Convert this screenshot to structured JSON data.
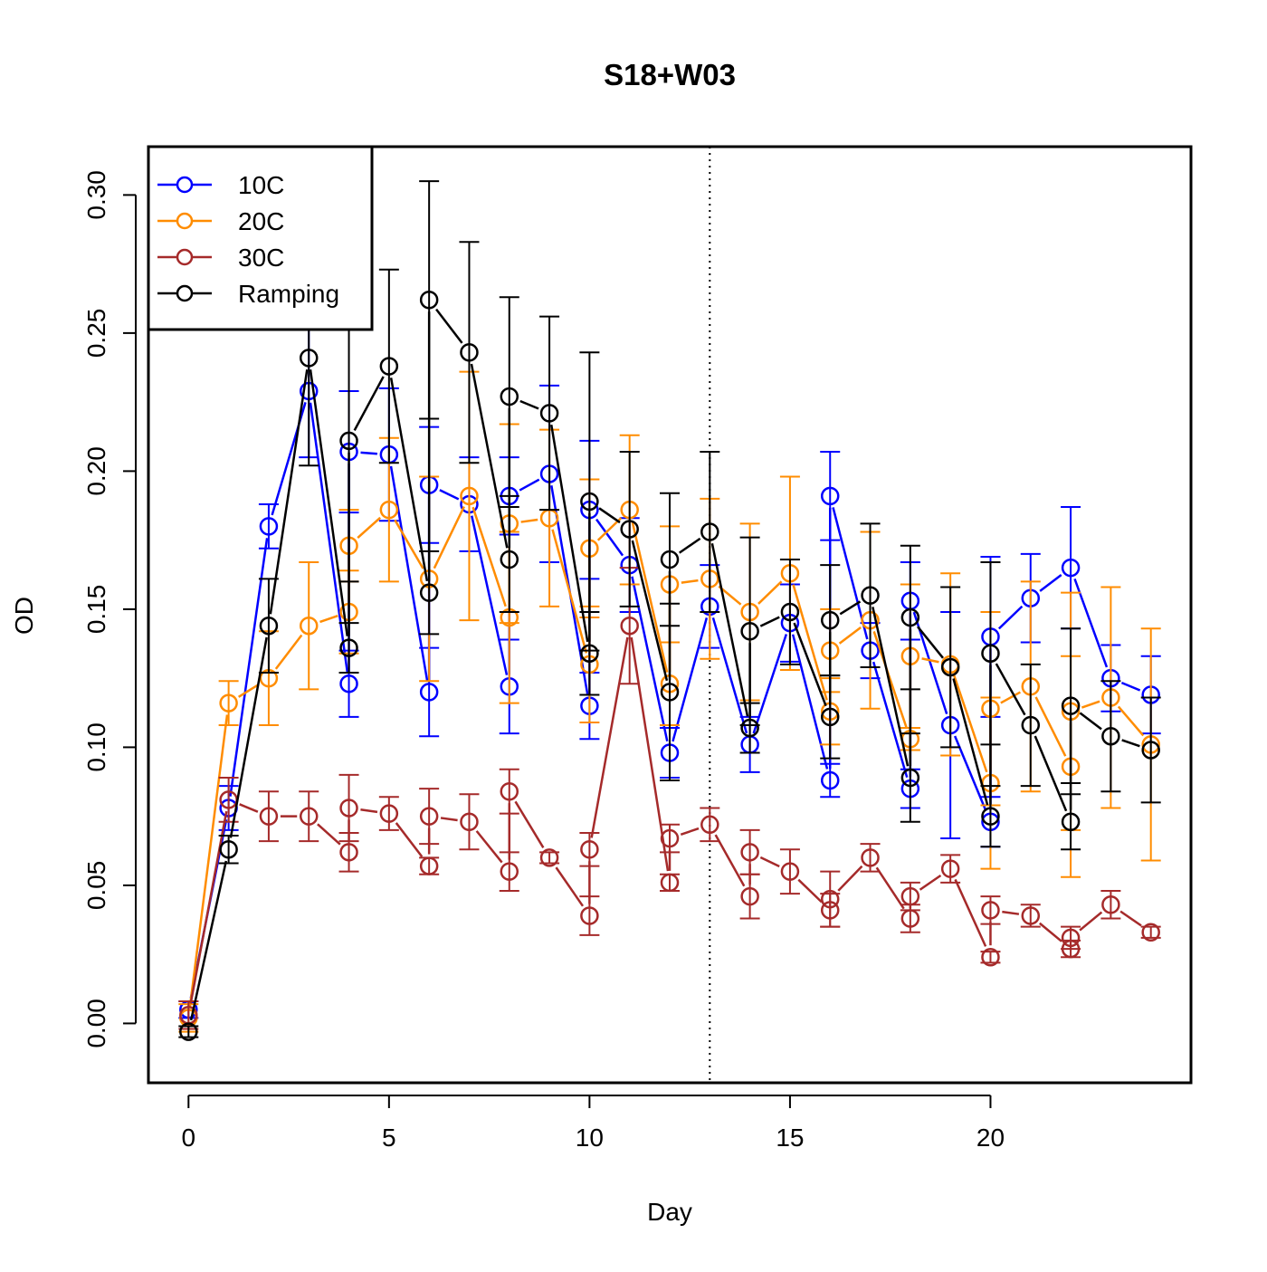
{
  "chart_data": {
    "type": "line",
    "title": "S18+W03",
    "xlabel": "Day",
    "ylabel": "OD",
    "xlim": [
      -1,
      25
    ],
    "ylim": [
      -0.0215,
      0.3175
    ],
    "xticks": [
      "0",
      "5",
      "10",
      "15",
      "20"
    ],
    "yticks": [
      "0.00",
      "0.05",
      "0.10",
      "0.15",
      "0.20",
      "0.25",
      "0.30"
    ],
    "reference_line": {
      "x": 13,
      "style": "dotted"
    },
    "legend_position": "top-left",
    "series": [
      {
        "name": "10C",
        "color": "#0000ff",
        "x": [
          0,
          1,
          2,
          3,
          4,
          4,
          5,
          6,
          6,
          7,
          8,
          8,
          9,
          10,
          10,
          11,
          12,
          13,
          14,
          15,
          16,
          16,
          17,
          18,
          18,
          19,
          20,
          20,
          21,
          22,
          23,
          24
        ],
        "y": [
          0.005,
          0.078,
          0.18,
          0.229,
          0.123,
          0.207,
          0.206,
          0.12,
          0.195,
          0.188,
          0.122,
          0.191,
          0.199,
          0.115,
          0.186,
          0.166,
          0.098,
          0.151,
          0.101,
          0.145,
          0.088,
          0.191,
          0.135,
          0.085,
          0.153,
          0.108,
          0.073,
          0.14,
          0.154,
          0.165,
          0.125,
          0.119
        ],
        "err": [
          0.003,
          0.008,
          0.008,
          0.024,
          0.012,
          0.022,
          0.024,
          0.016,
          0.021,
          0.017,
          0.017,
          0.014,
          0.032,
          0.012,
          0.025,
          0.017,
          0.009,
          0.015,
          0.01,
          0.014,
          0.006,
          0.016,
          0.01,
          0.007,
          0.014,
          0.041,
          0.009,
          0.029,
          0.016,
          0.022,
          0.012,
          0.014
        ]
      },
      {
        "name": "20C",
        "color": "#ff8c00",
        "x": [
          0,
          1,
          2,
          3,
          4,
          4,
          5,
          6,
          7,
          8,
          8,
          9,
          10,
          10,
          11,
          12,
          12,
          13,
          14,
          15,
          16,
          16,
          17,
          18,
          18,
          19,
          20,
          20,
          21,
          22,
          22,
          23,
          24
        ],
        "y": [
          0.002,
          0.116,
          0.125,
          0.144,
          0.149,
          0.173,
          0.186,
          0.161,
          0.191,
          0.147,
          0.181,
          0.183,
          0.13,
          0.172,
          0.186,
          0.123,
          0.159,
          0.161,
          0.149,
          0.163,
          0.113,
          0.135,
          0.146,
          0.103,
          0.133,
          0.13,
          0.087,
          0.114,
          0.122,
          0.093,
          0.113,
          0.118,
          0.101
        ],
        "err": [
          0.005,
          0.008,
          0.017,
          0.023,
          0.015,
          0.013,
          0.026,
          0.037,
          0.045,
          0.031,
          0.036,
          0.032,
          0.021,
          0.025,
          0.027,
          0.015,
          0.021,
          0.029,
          0.032,
          0.035,
          0.012,
          0.015,
          0.032,
          0.004,
          0.026,
          0.033,
          0.031,
          0.035,
          0.038,
          0.04,
          0.043,
          0.04,
          0.042
        ]
      },
      {
        "name": "30C",
        "color": "#a52a2a",
        "x": [
          0,
          1,
          2,
          3,
          4,
          4,
          5,
          6,
          6,
          7,
          8,
          8,
          9,
          10,
          10,
          11,
          12,
          12,
          13,
          14,
          14,
          15,
          16,
          16,
          17,
          18,
          18,
          19,
          20,
          20,
          21,
          22,
          22,
          23,
          24
        ],
        "y": [
          0.003,
          0.081,
          0.075,
          0.075,
          0.062,
          0.078,
          0.076,
          0.057,
          0.075,
          0.073,
          0.055,
          0.084,
          0.06,
          0.039,
          0.063,
          0.144,
          0.051,
          0.067,
          0.072,
          0.046,
          0.062,
          0.055,
          0.041,
          0.045,
          0.06,
          0.038,
          0.046,
          0.056,
          0.024,
          0.041,
          0.039,
          0.027,
          0.031,
          0.043,
          0.033
        ],
        "err": [
          0.005,
          0.008,
          0.009,
          0.009,
          0.007,
          0.012,
          0.006,
          0.003,
          0.01,
          0.01,
          0.007,
          0.008,
          0.002,
          0.007,
          0.006,
          0.021,
          0.003,
          0.005,
          0.006,
          0.008,
          0.008,
          0.008,
          0.006,
          0.01,
          0.005,
          0.005,
          0.005,
          0.005,
          0.002,
          0.005,
          0.004,
          0.003,
          0.004,
          0.005,
          0.002
        ]
      },
      {
        "name": "Ramping",
        "color": "#000000",
        "x": [
          0,
          1,
          2,
          3,
          4,
          4,
          5,
          6,
          6,
          7,
          8,
          8,
          9,
          10,
          10,
          11,
          12,
          12,
          13,
          14,
          14,
          15,
          16,
          16,
          17,
          18,
          18,
          19,
          20,
          20,
          21,
          22,
          22,
          23,
          24
        ],
        "y": [
          -0.003,
          0.063,
          0.144,
          0.241,
          0.136,
          0.211,
          0.238,
          0.156,
          0.262,
          0.243,
          0.168,
          0.227,
          0.221,
          0.134,
          0.189,
          0.179,
          0.12,
          0.168,
          0.178,
          0.107,
          0.142,
          0.149,
          0.111,
          0.146,
          0.155,
          0.089,
          0.147,
          0.129,
          0.075,
          0.134,
          0.108,
          0.073,
          0.115,
          0.104,
          0.099
        ],
        "err": [
          0.002,
          0.005,
          0.017,
          0.039,
          0.009,
          0.051,
          0.035,
          0.015,
          0.043,
          0.04,
          0.019,
          0.036,
          0.035,
          0.015,
          0.054,
          0.028,
          0.032,
          0.024,
          0.029,
          0.009,
          0.034,
          0.019,
          0.015,
          0.02,
          0.026,
          0.016,
          0.026,
          0.029,
          0.011,
          0.033,
          0.022,
          0.01,
          0.028,
          0.02,
          0.019
        ]
      }
    ]
  }
}
